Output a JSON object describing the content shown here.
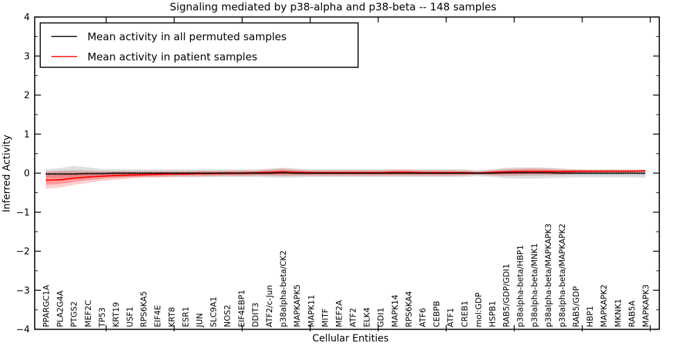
{
  "figure": {
    "title": "Signaling mediated by p38-alpha and p38-beta -- 148 samples",
    "xlabel": "Cellular Entities",
    "ylabel": "Inferred Activity"
  },
  "chart_data": {
    "type": "line",
    "title": "Signaling mediated by p38-alpha and p38-beta -- 148 samples",
    "xlabel": "Cellular Entities",
    "ylabel": "Inferred Activity",
    "ylim": [
      -4,
      4
    ],
    "yticks": [
      4,
      3,
      2,
      1,
      0,
      -1,
      -2,
      -3,
      -4
    ],
    "ytick_labels": [
      "4",
      "3",
      "2",
      "1",
      "0",
      "−1",
      "−2",
      "−3",
      "−4"
    ],
    "grid": false,
    "legend_position": "upper left",
    "categories": [
      "PPARGC1A",
      "PLA2G4A",
      "PTGS2",
      "MEF2C",
      "TP53",
      "KRT19",
      "USF1",
      "RPS6KA5",
      "EIF4E",
      "KRT8",
      "ESR1",
      "JUN",
      "SLC9A1",
      "NOS2",
      "EIF4EBP1",
      "DDIT3",
      "ATF2/c-Jun",
      "p38alpha-beta/CK2",
      "MAPKAPK5",
      "MAPK11",
      "MITF",
      "MEF2A",
      "ATF2",
      "ELK4",
      "GDI1",
      "MAPK14",
      "RPS6KA4",
      "ATF6",
      "CEBPB",
      "ATF1",
      "CREB1",
      "mol:GDP",
      "HSPB1",
      "RAB5/GDP/GDI1",
      "p38alpha-beta/HBP1",
      "p38alpha-beta/MNK1",
      "p38alpha-beta/MAPKAPK3",
      "p38alpha-beta/MAPKAPK2",
      "RAB5/GDP",
      "HBP1",
      "MAPKAPK2",
      "MKNK1",
      "RAB5A",
      "MAPKAPK3"
    ],
    "series": [
      {
        "name": "Mean activity in all permuted samples",
        "color": "#000000",
        "style": "line-with-tick-markers",
        "band_color": "#000000",
        "mean": [
          -0.02,
          -0.02,
          -0.02,
          -0.01,
          -0.01,
          0,
          0,
          0,
          0,
          0,
          0,
          0,
          0,
          0,
          0,
          0,
          0,
          0.01,
          0,
          0,
          0,
          0,
          0,
          0,
          0,
          0,
          0,
          0,
          0,
          0,
          0,
          0,
          0,
          0.01,
          0.01,
          0.01,
          0.01,
          0,
          0,
          0,
          0,
          0,
          0,
          0
        ],
        "band_lo": [
          -0.12,
          -0.13,
          -0.12,
          -0.11,
          -0.1,
          -0.1,
          -0.1,
          -0.1,
          -0.1,
          -0.1,
          -0.1,
          -0.1,
          -0.1,
          -0.1,
          -0.1,
          -0.1,
          -0.11,
          -0.12,
          -0.11,
          -0.1,
          -0.1,
          -0.1,
          -0.1,
          -0.1,
          -0.1,
          -0.1,
          -0.1,
          -0.1,
          -0.1,
          -0.1,
          -0.1,
          -0.08,
          -0.1,
          -0.13,
          -0.14,
          -0.14,
          -0.13,
          -0.12,
          -0.11,
          -0.11,
          -0.11,
          -0.11,
          -0.11,
          -0.12
        ],
        "band_hi": [
          0.1,
          0.13,
          0.19,
          0.15,
          0.11,
          0.1,
          0.1,
          0.1,
          0.1,
          0.1,
          0.1,
          0.1,
          0.1,
          0.1,
          0.1,
          0.1,
          0.12,
          0.14,
          0.12,
          0.1,
          0.1,
          0.1,
          0.1,
          0.1,
          0.1,
          0.1,
          0.1,
          0.1,
          0.1,
          0.1,
          0.1,
          0.08,
          0.1,
          0.14,
          0.15,
          0.15,
          0.14,
          0.12,
          0.1,
          0.1,
          0.1,
          0.1,
          0.1,
          0.1
        ]
      },
      {
        "name": "Mean activity in patient samples",
        "color": "#ff0000",
        "style": "line",
        "band_color": "#ff0000",
        "mean": [
          -0.18,
          -0.17,
          -0.13,
          -0.1,
          -0.08,
          -0.06,
          -0.05,
          -0.04,
          -0.03,
          -0.02,
          -0.02,
          -0.01,
          -0.01,
          0.0,
          0.0,
          0.01,
          0.02,
          0.03,
          0.02,
          0.01,
          0.01,
          0.01,
          0.01,
          0.01,
          0.01,
          0.02,
          0.02,
          0.01,
          0.01,
          0.01,
          0.01,
          0.0,
          0.02,
          0.03,
          0.04,
          0.04,
          0.04,
          0.04,
          0.05,
          0.05,
          0.05,
          0.05,
          0.05,
          0.06
        ],
        "band_lo": [
          -0.4,
          -0.37,
          -0.3,
          -0.25,
          -0.2,
          -0.17,
          -0.14,
          -0.12,
          -0.11,
          -0.1,
          -0.09,
          -0.09,
          -0.08,
          -0.08,
          -0.08,
          -0.07,
          -0.07,
          -0.08,
          -0.07,
          -0.07,
          -0.07,
          -0.07,
          -0.07,
          -0.07,
          -0.07,
          -0.07,
          -0.07,
          -0.07,
          -0.07,
          -0.07,
          -0.06,
          -0.04,
          -0.06,
          -0.07,
          -0.06,
          -0.05,
          -0.05,
          -0.04,
          -0.01,
          0.01,
          0.02,
          0.02,
          0.02,
          0.03
        ],
        "band_hi": [
          0.05,
          0.06,
          0.06,
          0.05,
          0.05,
          0.05,
          0.05,
          0.05,
          0.05,
          0.05,
          0.05,
          0.06,
          0.06,
          0.06,
          0.07,
          0.07,
          0.09,
          0.12,
          0.09,
          0.08,
          0.08,
          0.08,
          0.08,
          0.08,
          0.08,
          0.09,
          0.09,
          0.08,
          0.08,
          0.08,
          0.07,
          0.05,
          0.08,
          0.11,
          0.12,
          0.13,
          0.12,
          0.11,
          0.09,
          0.08,
          0.08,
          0.08,
          0.08,
          0.08
        ]
      }
    ]
  }
}
